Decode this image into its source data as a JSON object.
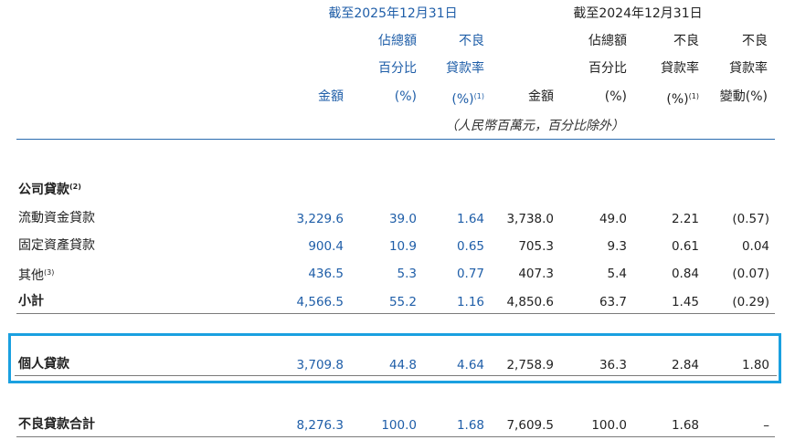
{
  "headers": {
    "group_2025": "截至2025年12月31日",
    "group_2024": "截至2024年12月31日",
    "amount": "金額",
    "pct_l1": "佔總額",
    "pct_l2": "百分比",
    "pct_l3": "(%)",
    "npl_l1": "不良",
    "npl_l2": "貸款率",
    "npl_l3": "(%)",
    "npl_note": "(1)",
    "chg_l1": "不良",
    "chg_l2": "貸款率",
    "chg_l3": "變動(%)",
    "unit_note": "（人民幣百萬元，百分比除外）"
  },
  "section_corporate": {
    "label": "公司貸款",
    "note": "(2)"
  },
  "rows": [
    {
      "label": "流動資金貸款",
      "note": "",
      "a25": "3,229.6",
      "p25": "39.0",
      "n25": "1.64",
      "a24": "3,738.0",
      "p24": "49.0",
      "n24": "2.21",
      "chg": "(0.57)"
    },
    {
      "label": "固定資產貸款",
      "note": "",
      "a25": "900.4",
      "p25": "10.9",
      "n25": "0.65",
      "a24": "705.3",
      "p24": "9.3",
      "n24": "0.61",
      "chg": "0.04"
    },
    {
      "label": "其他",
      "note": "(3)",
      "a25": "436.5",
      "p25": "5.3",
      "n25": "0.77",
      "a24": "407.3",
      "p24": "5.4",
      "n24": "0.84",
      "chg": "(0.07)"
    },
    {
      "label": "小計",
      "note": "",
      "a25": "4,566.5",
      "p25": "55.2",
      "n25": "1.16",
      "a24": "4,850.6",
      "p24": "63.7",
      "n24": "1.45",
      "chg": "(0.29)"
    }
  ],
  "personal": {
    "label": "個人貸款",
    "a25": "3,709.8",
    "p25": "44.8",
    "n25": "4.64",
    "a24": "2,758.9",
    "p24": "36.3",
    "n24": "2.84",
    "chg": "1.80"
  },
  "total": {
    "label": "不良貸款合計",
    "a25": "8,276.3",
    "p25": "100.0",
    "n25": "1.68",
    "a24": "7,609.5",
    "p24": "100.0",
    "n24": "1.68",
    "chg": "–"
  },
  "colors": {
    "accent_2025": "#1f5ea8",
    "highlight_border": "#1aa0e0"
  }
}
